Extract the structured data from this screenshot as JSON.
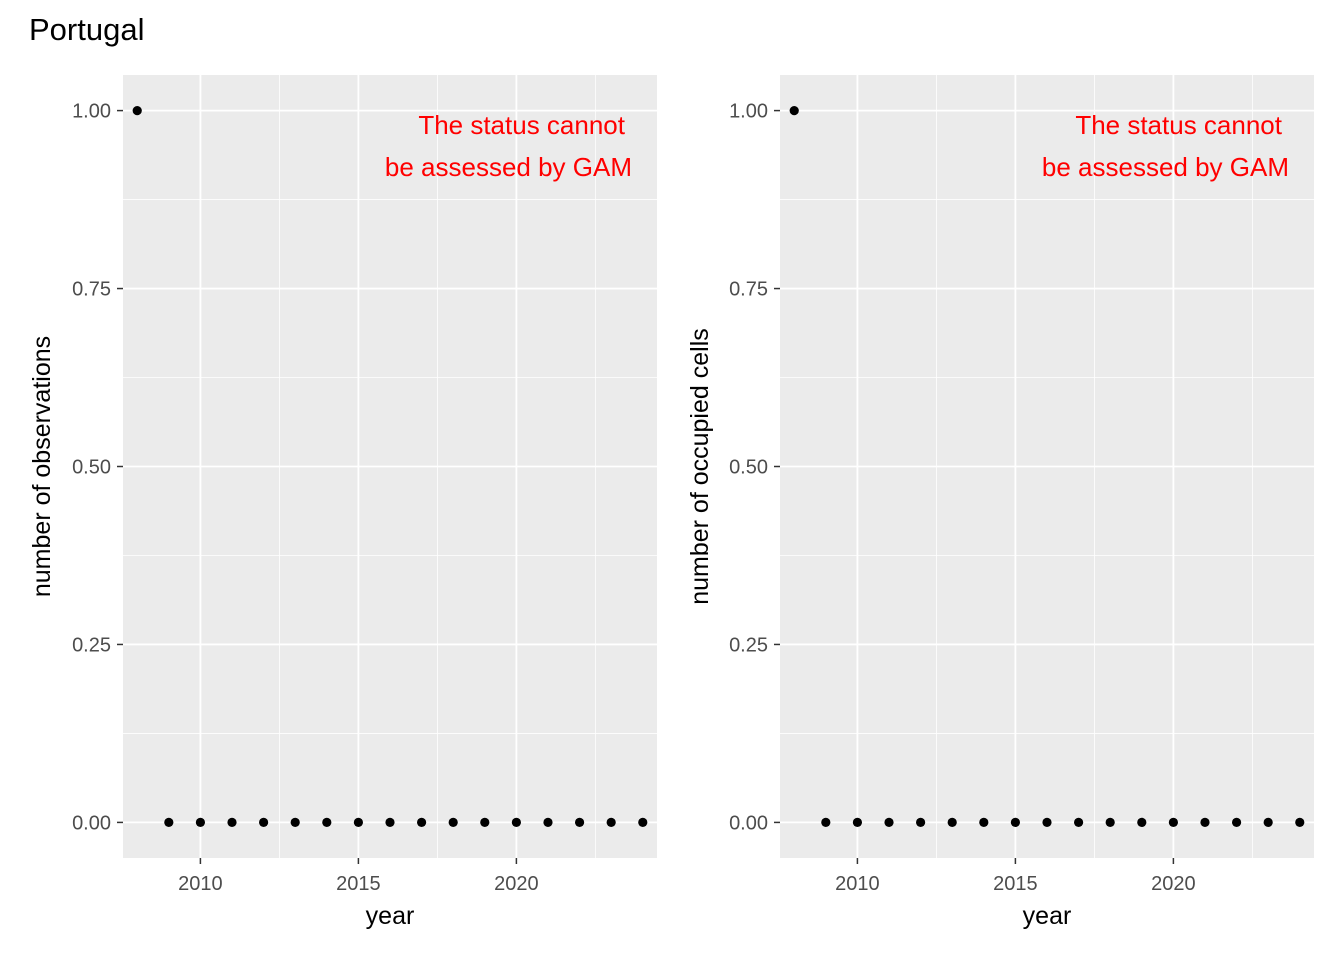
{
  "title": "Portugal",
  "chart_data": [
    {
      "type": "scatter",
      "xlabel": "year",
      "ylabel": "number of observations",
      "xlim": [
        2007.55,
        2024.45
      ],
      "ylim": [
        -0.05,
        1.05
      ],
      "x_ticks": [
        2010,
        2015,
        2020
      ],
      "x_tick_labels": [
        "2010",
        "2015",
        "2020"
      ],
      "y_ticks": [
        0,
        0.25,
        0.5,
        0.75,
        1
      ],
      "y_tick_labels": [
        "0.00",
        "0.25",
        "0.50",
        "0.75",
        "1.00"
      ],
      "grid": true,
      "x": [
        2008,
        2009,
        2010,
        2011,
        2012,
        2013,
        2014,
        2015,
        2016,
        2017,
        2018,
        2019,
        2020,
        2021,
        2022,
        2023,
        2024
      ],
      "y": [
        1,
        0,
        0,
        0,
        0,
        0,
        0,
        0,
        0,
        0,
        0,
        0,
        0,
        0,
        0,
        0,
        0
      ],
      "annotation": {
        "lines": [
          "The status cannot",
          "be assessed by GAM"
        ],
        "color": "#ff0000"
      }
    },
    {
      "type": "scatter",
      "xlabel": "year",
      "ylabel": "number of occupied cells",
      "xlim": [
        2007.55,
        2024.45
      ],
      "ylim": [
        -0.05,
        1.05
      ],
      "x_ticks": [
        2010,
        2015,
        2020
      ],
      "x_tick_labels": [
        "2010",
        "2015",
        "2020"
      ],
      "y_ticks": [
        0,
        0.25,
        0.5,
        0.75,
        1
      ],
      "y_tick_labels": [
        "0.00",
        "0.25",
        "0.50",
        "0.75",
        "1.00"
      ],
      "grid": true,
      "x": [
        2008,
        2009,
        2010,
        2011,
        2012,
        2013,
        2014,
        2015,
        2016,
        2017,
        2018,
        2019,
        2020,
        2021,
        2022,
        2023,
        2024
      ],
      "y": [
        1,
        0,
        0,
        0,
        0,
        0,
        0,
        0,
        0,
        0,
        0,
        0,
        0,
        0,
        0,
        0,
        0
      ],
      "annotation": {
        "lines": [
          "The status cannot",
          "be assessed by GAM"
        ],
        "color": "#ff0000"
      }
    }
  ],
  "colors": {
    "panel_background": "#ebebeb",
    "grid_major": "#ffffff",
    "point": "#000000",
    "annotation": "#ff0000"
  }
}
